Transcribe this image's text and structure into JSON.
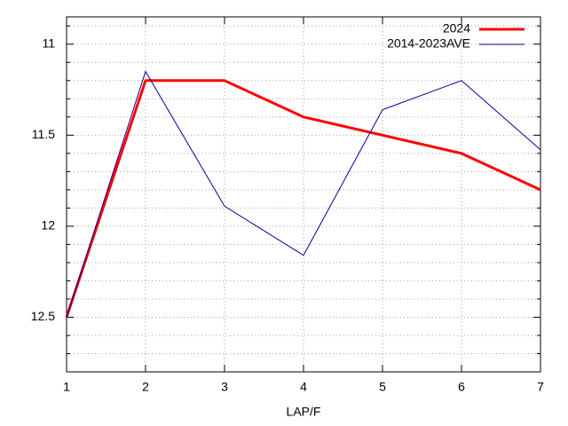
{
  "chart_data": {
    "type": "line",
    "xlabel": "LAP/F",
    "x": [
      1,
      2,
      3,
      4,
      5,
      6,
      7
    ],
    "series": [
      {
        "name": "2024",
        "color": "#ff0000",
        "width": 3,
        "values": [
          12.5,
          11.2,
          11.2,
          11.4,
          11.5,
          11.6,
          11.8
        ]
      },
      {
        "name": "2014-2023AVE",
        "color": "#0000a0",
        "width": 1,
        "values": [
          12.5,
          11.15,
          11.89,
          12.16,
          11.36,
          11.2,
          11.58
        ]
      }
    ],
    "xlim": [
      1,
      7
    ],
    "xticks": [
      1,
      2,
      3,
      4,
      5,
      6,
      7
    ],
    "ylim": [
      12.8,
      10.85
    ],
    "yticks": [
      11,
      11.5,
      12,
      12.5
    ],
    "yminorticks": [
      10.9,
      11.1,
      11.2,
      11.3,
      11.4,
      11.6,
      11.7,
      11.8,
      11.9,
      12.1,
      12.2,
      12.3,
      12.4,
      12.6,
      12.7
    ],
    "grid": true,
    "legend": "top-right"
  }
}
